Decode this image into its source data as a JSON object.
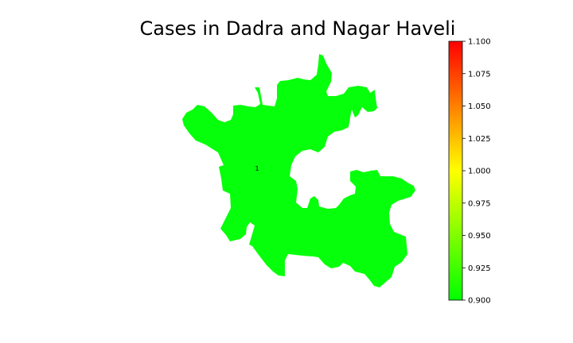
{
  "title": "Cases in Dadra and Nagar Haveli",
  "region": {
    "name": "Dadra and Nagar Haveli",
    "value_label": "1",
    "value": 1,
    "fill_color": "#06ff0a"
  },
  "colorbar": {
    "min": 0.9,
    "max": 1.1,
    "ticks": [
      "0.900",
      "0.925",
      "0.950",
      "0.975",
      "1.000",
      "1.025",
      "1.050",
      "1.075",
      "1.100"
    ],
    "colors": [
      "#00ff00",
      "#ffff00",
      "#ff0000"
    ]
  }
}
